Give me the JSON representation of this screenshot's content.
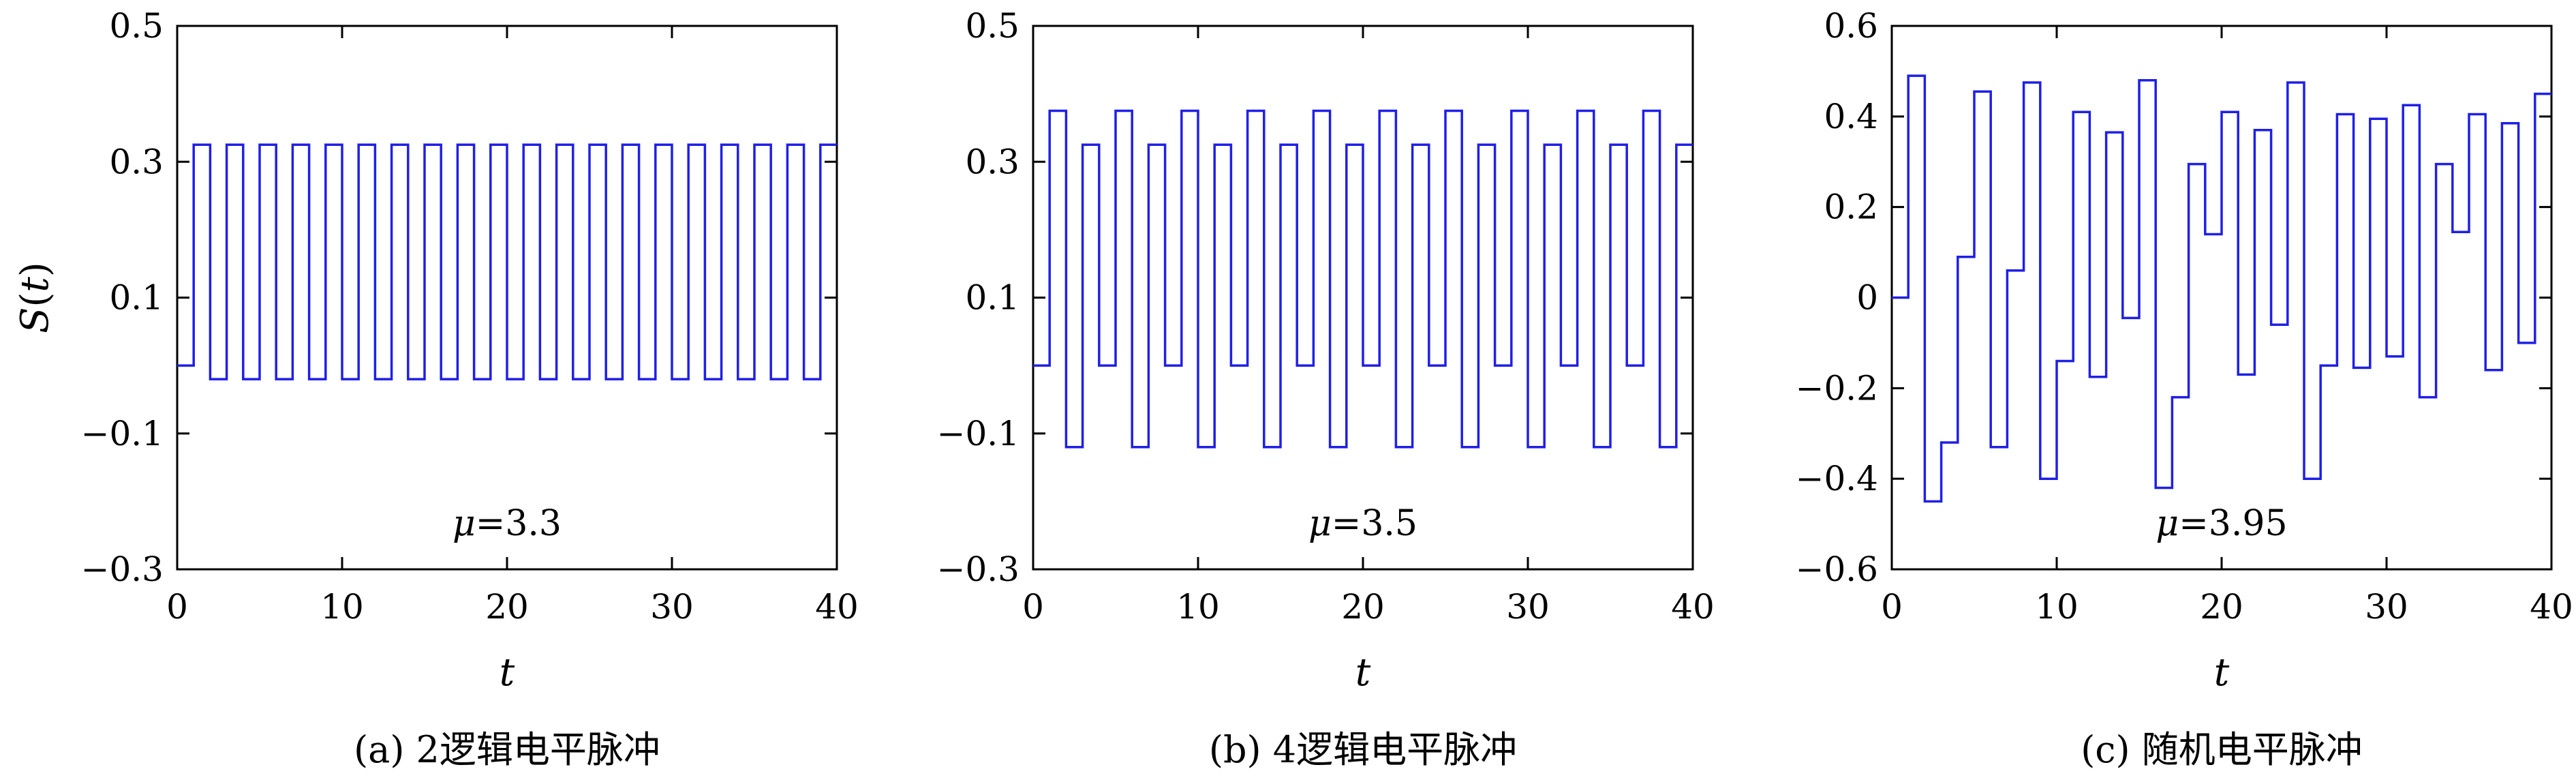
{
  "chart_data": [
    {
      "type": "line",
      "step": true,
      "caption": "(a) 2逻辑电平脉冲",
      "annotation": "μ=3.3",
      "xlabel": "t",
      "ylabel": "S(t)",
      "xlim": [
        0,
        40
      ],
      "ylim": [
        -0.3,
        0.5
      ],
      "xticks": [
        0,
        10,
        20,
        30,
        40
      ],
      "yticks": [
        -0.3,
        -0.1,
        0.1,
        0.3,
        0.5
      ],
      "ytick_labels": [
        "−0.3",
        "−0.1",
        "0.1",
        "0.3",
        "0.5"
      ],
      "color": "#1f1fe8",
      "x": [
        0,
        1,
        2,
        3,
        4,
        5,
        6,
        7,
        8,
        9,
        10,
        11,
        12,
        13,
        14,
        15,
        16,
        17,
        18,
        19,
        20,
        21,
        22,
        23,
        24,
        25,
        26,
        27,
        28,
        29,
        30,
        31,
        32,
        33,
        34,
        35,
        36,
        37,
        38,
        39
      ],
      "y": [
        0.0,
        0.325,
        -0.02,
        0.325,
        -0.02,
        0.325,
        -0.02,
        0.325,
        -0.02,
        0.325,
        -0.02,
        0.325,
        -0.02,
        0.325,
        -0.02,
        0.325,
        -0.02,
        0.325,
        -0.02,
        0.325,
        -0.02,
        0.325,
        -0.02,
        0.325,
        -0.02,
        0.325,
        -0.02,
        0.325,
        -0.02,
        0.325,
        -0.02,
        0.325,
        -0.02,
        0.325,
        -0.02,
        0.325,
        -0.02,
        0.325,
        -0.02,
        0.325
      ]
    },
    {
      "type": "line",
      "step": true,
      "caption": "(b) 4逻辑电平脉冲",
      "annotation": "μ=3.5",
      "xlabel": "t",
      "ylabel": "",
      "xlim": [
        0,
        40
      ],
      "ylim": [
        -0.3,
        0.5
      ],
      "xticks": [
        0,
        10,
        20,
        30,
        40
      ],
      "yticks": [
        -0.3,
        -0.1,
        0.1,
        0.3,
        0.5
      ],
      "ytick_labels": [
        "−0.3",
        "−0.1",
        "0.1",
        "0.3",
        "0.5"
      ],
      "color": "#1f1fe8",
      "x": [
        0,
        1,
        2,
        3,
        4,
        5,
        6,
        7,
        8,
        9,
        10,
        11,
        12,
        13,
        14,
        15,
        16,
        17,
        18,
        19,
        20,
        21,
        22,
        23,
        24,
        25,
        26,
        27,
        28,
        29,
        30,
        31,
        32,
        33,
        34,
        35,
        36,
        37,
        38,
        39
      ],
      "y": [
        0.0,
        0.375,
        -0.12,
        0.325,
        0.0,
        0.375,
        -0.12,
        0.325,
        0.0,
        0.375,
        -0.12,
        0.325,
        0.0,
        0.375,
        -0.12,
        0.325,
        0.0,
        0.375,
        -0.12,
        0.325,
        0.0,
        0.375,
        -0.12,
        0.325,
        0.0,
        0.375,
        -0.12,
        0.325,
        0.0,
        0.375,
        -0.12,
        0.325,
        0.0,
        0.375,
        -0.12,
        0.325,
        0.0,
        0.375,
        -0.12,
        0.325
      ]
    },
    {
      "type": "line",
      "step": true,
      "caption": "(c) 随机电平脉冲",
      "annotation": "μ=3.95",
      "xlabel": "t",
      "ylabel": "",
      "xlim": [
        0,
        40
      ],
      "ylim": [
        -0.6,
        0.6
      ],
      "xticks": [
        0,
        10,
        20,
        30,
        40
      ],
      "yticks": [
        -0.6,
        -0.4,
        -0.2,
        0,
        0.2,
        0.4,
        0.6
      ],
      "ytick_labels": [
        "−0.6",
        "−0.4",
        "−0.2",
        "0",
        "0.2",
        "0.4",
        "0.6"
      ],
      "color": "#1f1fe8",
      "x": [
        0,
        1,
        2,
        3,
        4,
        5,
        6,
        7,
        8,
        9,
        10,
        11,
        12,
        13,
        14,
        15,
        16,
        17,
        18,
        19,
        20,
        21,
        22,
        23,
        24,
        25,
        26,
        27,
        28,
        29,
        30,
        31,
        32,
        33,
        34,
        35,
        36,
        37,
        38,
        39
      ],
      "y": [
        0.0,
        0.49,
        -0.45,
        -0.32,
        0.09,
        0.455,
        -0.33,
        0.06,
        0.475,
        -0.4,
        -0.14,
        0.41,
        -0.175,
        0.365,
        -0.045,
        0.48,
        -0.42,
        -0.22,
        0.295,
        0.14,
        0.41,
        -0.17,
        0.37,
        -0.06,
        0.475,
        -0.4,
        -0.15,
        0.405,
        -0.155,
        0.395,
        -0.13,
        0.425,
        -0.22,
        0.295,
        0.145,
        0.405,
        -0.16,
        0.385,
        -0.1,
        0.45
      ]
    }
  ]
}
